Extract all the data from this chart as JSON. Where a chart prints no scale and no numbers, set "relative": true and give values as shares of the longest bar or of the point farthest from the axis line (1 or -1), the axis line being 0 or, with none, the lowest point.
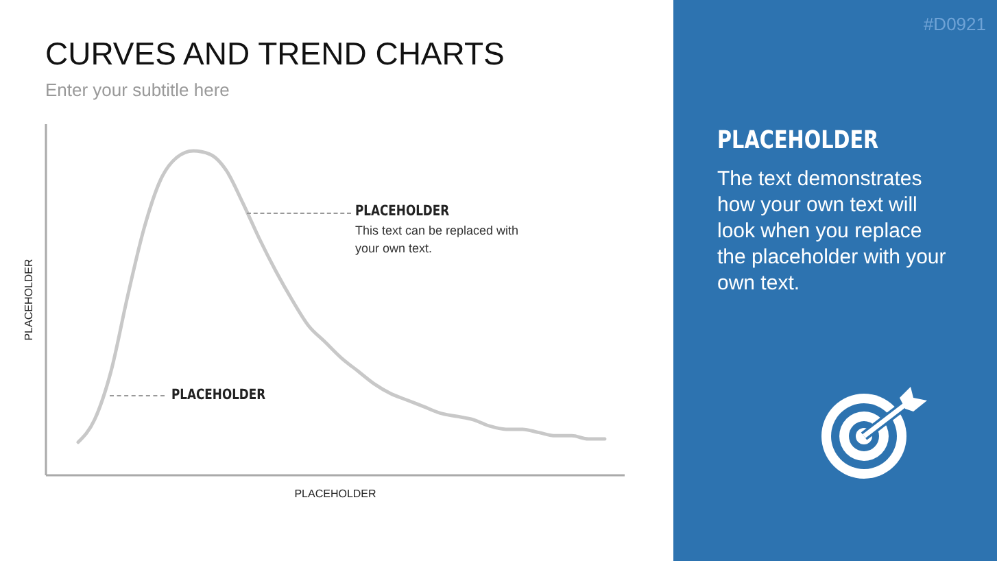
{
  "chart_data": [
    {
      "type": "line",
      "title": "CURVES AND TREND CHARTS",
      "subtitle": "Enter your subtitle here",
      "xlabel": "PLACEHOLDER",
      "ylabel": "PLACEHOLDER",
      "relative": true,
      "grid": false,
      "legend": false,
      "marker": "none",
      "line_style": "solid",
      "annotations": [
        "PLACEHOLDER",
        "This text can be replaced with your own text.",
        "PLACEHOLDER"
      ],
      "categories": [
        null,
        null,
        null,
        null,
        null,
        null,
        null,
        null,
        null,
        null,
        null,
        null,
        null,
        null,
        null,
        null,
        null,
        null,
        null,
        null,
        null,
        null,
        null,
        null,
        null,
        null,
        null,
        null,
        null,
        null,
        null,
        null,
        null
      ],
      "series": [
        {
          "color": "#c8c8c8",
          "values": [
            0.1,
            0.17,
            0.32,
            0.55,
            0.76,
            0.91,
            0.98,
            1.0,
            0.99,
            0.94,
            0.84,
            0.73,
            0.63,
            0.54,
            0.46,
            0.41,
            0.36,
            0.32,
            0.28,
            0.25,
            0.23,
            0.21,
            0.19,
            0.18,
            0.17,
            0.15,
            0.14,
            0.14,
            0.13,
            0.12,
            0.12,
            0.11,
            0.11
          ]
        }
      ]
    },
    {
      "type": "other",
      "title": "PLACEHOLDER",
      "annotations": [
        "The text demonstrates how your own text will look when you replace the placeholder with your own text.",
        "#D0921"
      ]
    }
  ]
}
